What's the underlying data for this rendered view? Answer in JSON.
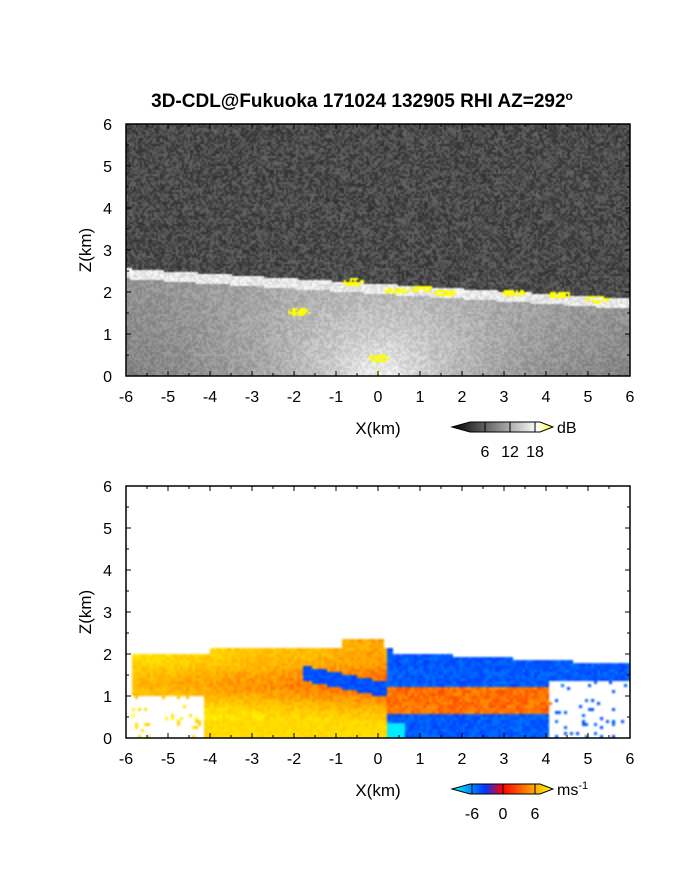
{
  "chart_data": [
    {
      "type": "heatmap",
      "panel": "reflectivity",
      "title": "3D-CDL@Fukuoka 171024 132905 RHI AZ=292",
      "title_superscript": "o",
      "xlabel": "X(km)",
      "ylabel": "Z(km)",
      "xlim": [
        -6,
        6
      ],
      "ylim": [
        0,
        6
      ],
      "x_ticks": [
        "-6",
        "-5",
        "-4",
        "-3",
        "-2",
        "-1",
        "0",
        "1",
        "2",
        "3",
        "4",
        "5",
        "6"
      ],
      "y_ticks": [
        "0",
        "1",
        "2",
        "3",
        "4",
        "5",
        "6"
      ],
      "colorbar": {
        "unit": "dB",
        "ticks": [
          "6",
          "12",
          "18"
        ],
        "range": [
          0,
          20
        ],
        "colors": [
          "#000000",
          "#ffffff",
          "#ffff00"
        ]
      },
      "features": {
        "background_noise_level_db": 3,
        "boundary_layer_top_km": 2.05,
        "high_reflectivity_cells": [
          {
            "x": -0.6,
            "z": 2.2
          },
          {
            "x": 0.4,
            "z": 2.0
          },
          {
            "x": 1.0,
            "z": 2.05
          },
          {
            "x": 1.6,
            "z": 1.95
          },
          {
            "x": 3.2,
            "z": 1.95
          },
          {
            "x": 4.3,
            "z": 1.9
          },
          {
            "x": 5.2,
            "z": 1.8
          },
          {
            "x": -1.9,
            "z": 1.5
          },
          {
            "x": 0.0,
            "z": 0.4
          }
        ]
      }
    },
    {
      "type": "heatmap",
      "panel": "doppler_velocity",
      "xlabel": "X(km)",
      "ylabel": "Z(km)",
      "xlim": [
        -6,
        6
      ],
      "ylim": [
        0,
        6
      ],
      "x_ticks": [
        "-6",
        "-5",
        "-4",
        "-3",
        "-2",
        "-1",
        "0",
        "1",
        "2",
        "3",
        "4",
        "5",
        "6"
      ],
      "y_ticks": [
        "0",
        "1",
        "2",
        "3",
        "4",
        "5",
        "6"
      ],
      "colorbar": {
        "unit": "ms",
        "unit_superscript": "-1",
        "ticks": [
          "-6",
          "0",
          "6"
        ],
        "range": [
          -8,
          8
        ],
        "colors": [
          "#00ffff",
          "#0033ff",
          "#ff0000",
          "#ffff00"
        ]
      },
      "features": {
        "positive_velocity_region_x_km": [
          -6,
          0.2
        ],
        "negative_velocity_region_x_km": [
          0.2,
          6
        ],
        "echo_top_km": 2.1,
        "negative_velocity_band": {
          "x_range": [
            -1.8,
            0.2
          ],
          "z_range": [
            1.1,
            1.5
          ]
        }
      }
    }
  ]
}
